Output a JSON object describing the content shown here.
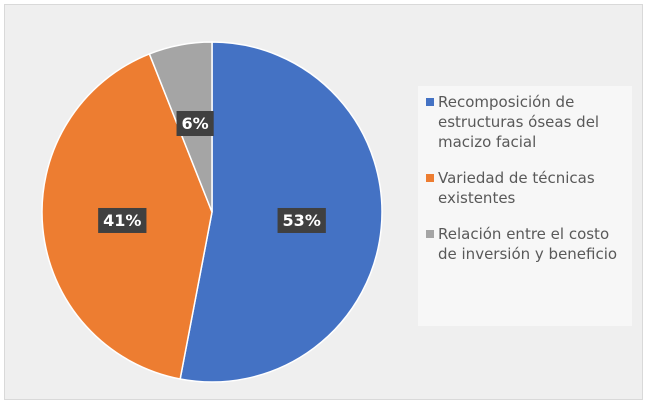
{
  "chart_data": {
    "type": "pie",
    "categories": [
      "Recomposición de estructuras óseas del macizo facial",
      "Variedad de técnicas existentes",
      "Relación entre el costo de inversión y beneficio"
    ],
    "values": [
      53,
      41,
      6
    ],
    "value_labels": [
      "53%",
      "41%",
      "6%"
    ],
    "colors": [
      "#4472c4",
      "#ed7d31",
      "#a5a5a5"
    ],
    "legend": "right"
  }
}
